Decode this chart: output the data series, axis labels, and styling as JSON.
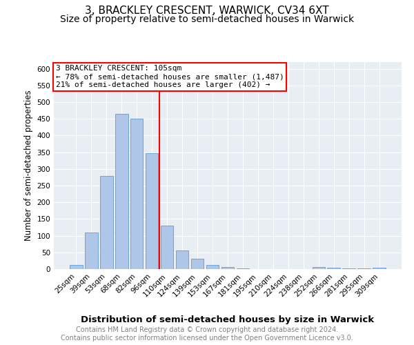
{
  "title": "3, BRACKLEY CRESCENT, WARWICK, CV34 6XT",
  "subtitle": "Size of property relative to semi-detached houses in Warwick",
  "xlabel": "Distribution of semi-detached houses by size in Warwick",
  "ylabel": "Number of semi-detached properties",
  "footer_line1": "Contains HM Land Registry data © Crown copyright and database right 2024.",
  "footer_line2": "Contains public sector information licensed under the Open Government Licence v3.0.",
  "categories": [
    "25sqm",
    "39sqm",
    "53sqm",
    "68sqm",
    "82sqm",
    "96sqm",
    "110sqm",
    "124sqm",
    "139sqm",
    "153sqm",
    "167sqm",
    "181sqm",
    "195sqm",
    "210sqm",
    "224sqm",
    "238sqm",
    "252sqm",
    "266sqm",
    "281sqm",
    "295sqm",
    "309sqm"
  ],
  "values": [
    12,
    110,
    280,
    465,
    450,
    347,
    130,
    55,
    30,
    13,
    7,
    3,
    1,
    1,
    1,
    0,
    6,
    5,
    2,
    2,
    4
  ],
  "bar_color": "#aec6e8",
  "bar_edge_color": "#5b9bd5",
  "property_bin_index": 6,
  "vline_color": "red",
  "annotation_text": "3 BRACKLEY CRESCENT: 105sqm\n← 78% of semi-detached houses are smaller (1,487)\n21% of semi-detached houses are larger (402) →",
  "annotation_box_color": "white",
  "annotation_box_edge_color": "red",
  "ylim": [
    0,
    620
  ],
  "yticks": [
    0,
    50,
    100,
    150,
    200,
    250,
    300,
    350,
    400,
    450,
    500,
    550,
    600
  ],
  "background_color": "#e8eef4",
  "title_fontsize": 11,
  "subtitle_fontsize": 10,
  "xlabel_fontsize": 9.5,
  "ylabel_fontsize": 8.5,
  "tick_fontsize": 7.5,
  "annotation_fontsize": 8,
  "footer_fontsize": 7
}
